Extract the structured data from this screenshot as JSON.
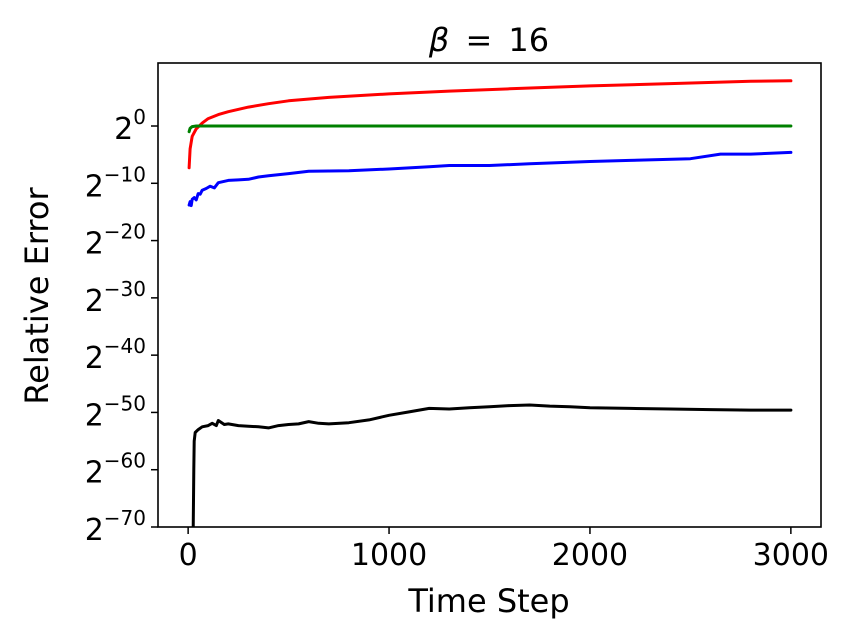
{
  "chart_data": {
    "type": "line",
    "title": {
      "prefix": "β",
      "op": "=",
      "value": "16"
    },
    "xlabel": "Time Step",
    "ylabel": "Relative Error",
    "xlim": [
      -150,
      3150
    ],
    "ylim": [
      -70,
      11
    ],
    "y_scale": "log2",
    "x_ticks": [
      {
        "value": 0,
        "label": "0"
      },
      {
        "value": 1000,
        "label": "1000"
      },
      {
        "value": 2000,
        "label": "2000"
      },
      {
        "value": 3000,
        "label": "3000"
      }
    ],
    "y_ticks": [
      {
        "value": 0,
        "base": "2",
        "exp": "0"
      },
      {
        "value": -10,
        "base": "2",
        "exp": "−10"
      },
      {
        "value": -20,
        "base": "2",
        "exp": "−20"
      },
      {
        "value": -30,
        "base": "2",
        "exp": "−30"
      },
      {
        "value": -40,
        "base": "2",
        "exp": "−40"
      },
      {
        "value": -50,
        "base": "2",
        "exp": "−50"
      },
      {
        "value": -60,
        "base": "2",
        "exp": "−60"
      },
      {
        "value": -70,
        "base": "2",
        "exp": "−70"
      }
    ],
    "grid": false,
    "legend": "none",
    "series": [
      {
        "color": "#ff0000",
        "points": [
          [
            5,
            -7.3
          ],
          [
            10,
            -4.0
          ],
          [
            20,
            -1.8
          ],
          [
            40,
            -0.5
          ],
          [
            70,
            0.5
          ],
          [
            100,
            1.3
          ],
          [
            150,
            2.0
          ],
          [
            200,
            2.5
          ],
          [
            300,
            3.3
          ],
          [
            400,
            3.9
          ],
          [
            500,
            4.4
          ],
          [
            700,
            5.0
          ],
          [
            1000,
            5.6
          ],
          [
            1300,
            6.1
          ],
          [
            1600,
            6.5
          ],
          [
            2000,
            7.0
          ],
          [
            2400,
            7.4
          ],
          [
            2800,
            7.8
          ],
          [
            3000,
            7.9
          ]
        ]
      },
      {
        "color": "#008000",
        "points": [
          [
            5,
            -1.0
          ],
          [
            10,
            -0.4
          ],
          [
            20,
            -0.1
          ],
          [
            40,
            0.0
          ],
          [
            100,
            0.0
          ],
          [
            500,
            0.0
          ],
          [
            1000,
            0.0
          ],
          [
            2000,
            0.0
          ],
          [
            3000,
            0.0
          ]
        ]
      },
      {
        "color": "#0000ff",
        "points": [
          [
            5,
            -13.8
          ],
          [
            10,
            -13.2
          ],
          [
            15,
            -13.9
          ],
          [
            20,
            -12.8
          ],
          [
            30,
            -12.5
          ],
          [
            40,
            -12.9
          ],
          [
            50,
            -11.8
          ],
          [
            60,
            -11.9
          ],
          [
            70,
            -11.2
          ],
          [
            90,
            -10.9
          ],
          [
            110,
            -10.5
          ],
          [
            130,
            -10.8
          ],
          [
            150,
            -9.9
          ],
          [
            200,
            -9.5
          ],
          [
            250,
            -9.4
          ],
          [
            300,
            -9.3
          ],
          [
            350,
            -8.9
          ],
          [
            400,
            -8.7
          ],
          [
            500,
            -8.3
          ],
          [
            600,
            -7.9
          ],
          [
            800,
            -7.8
          ],
          [
            1000,
            -7.5
          ],
          [
            1200,
            -7.1
          ],
          [
            1300,
            -6.9
          ],
          [
            1500,
            -6.9
          ],
          [
            1700,
            -6.6
          ],
          [
            2000,
            -6.2
          ],
          [
            2200,
            -6.0
          ],
          [
            2500,
            -5.7
          ],
          [
            2650,
            -4.9
          ],
          [
            2800,
            -4.9
          ],
          [
            3000,
            -4.6
          ]
        ]
      },
      {
        "color": "#000000",
        "points": [
          [
            25,
            -70.5
          ],
          [
            28,
            -60.0
          ],
          [
            30,
            -55.0
          ],
          [
            35,
            -53.5
          ],
          [
            50,
            -53.0
          ],
          [
            70,
            -52.5
          ],
          [
            100,
            -52.3
          ],
          [
            120,
            -51.9
          ],
          [
            140,
            -52.3
          ],
          [
            150,
            -51.4
          ],
          [
            180,
            -52.1
          ],
          [
            200,
            -52.0
          ],
          [
            250,
            -52.3
          ],
          [
            300,
            -52.4
          ],
          [
            350,
            -52.5
          ],
          [
            400,
            -52.7
          ],
          [
            450,
            -52.3
          ],
          [
            500,
            -52.1
          ],
          [
            550,
            -52.0
          ],
          [
            600,
            -51.6
          ],
          [
            650,
            -51.9
          ],
          [
            700,
            -52.0
          ],
          [
            800,
            -51.8
          ],
          [
            900,
            -51.3
          ],
          [
            1000,
            -50.5
          ],
          [
            1100,
            -49.9
          ],
          [
            1200,
            -49.3
          ],
          [
            1300,
            -49.4
          ],
          [
            1400,
            -49.2
          ],
          [
            1500,
            -49.0
          ],
          [
            1600,
            -48.8
          ],
          [
            1700,
            -48.7
          ],
          [
            1800,
            -48.9
          ],
          [
            1900,
            -49.0
          ],
          [
            2000,
            -49.2
          ],
          [
            2200,
            -49.3
          ],
          [
            2400,
            -49.4
          ],
          [
            2600,
            -49.5
          ],
          [
            2800,
            -49.6
          ],
          [
            3000,
            -49.6
          ]
        ]
      }
    ]
  }
}
